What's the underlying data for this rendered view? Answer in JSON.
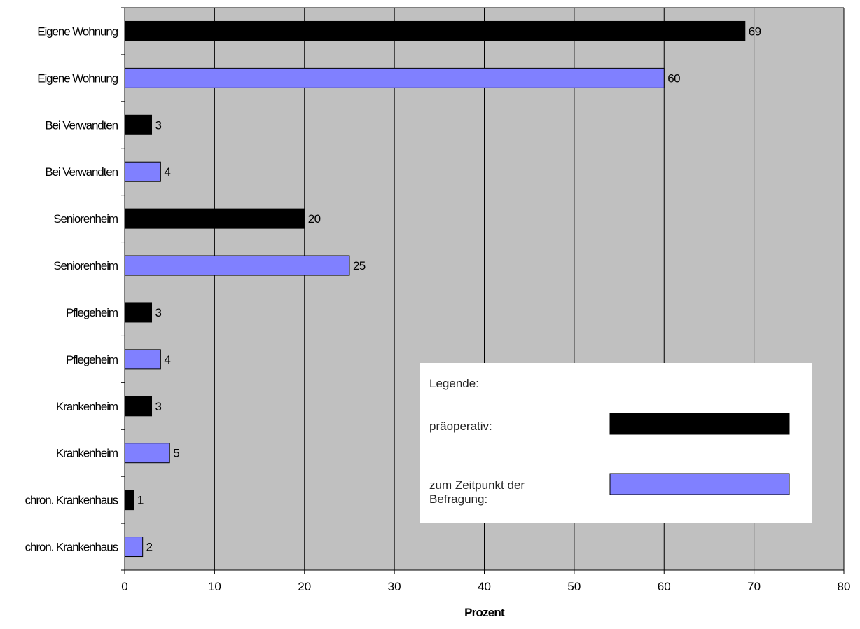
{
  "chart_data": {
    "type": "bar",
    "orientation": "horizontal",
    "categories": [
      "Eigene Wohnung",
      "Eigene Wohnung",
      "Bei Verwandten",
      "Bei Verwandten",
      "Seniorenheim",
      "Seniorenheim",
      "Pflegeheim",
      "Pflegeheim",
      "Krankenheim",
      "Krankenheim",
      "chron. Krankenhaus",
      "chron. Krankenhaus"
    ],
    "values": [
      69,
      60,
      3,
      4,
      20,
      25,
      3,
      4,
      3,
      5,
      1,
      2
    ],
    "series_index": [
      0,
      1,
      0,
      1,
      0,
      1,
      0,
      1,
      0,
      1,
      0,
      1
    ],
    "series": [
      {
        "name": "präoperativ:",
        "color": "#000000"
      },
      {
        "name": "zum Zeitpunkt der Befragung:",
        "color": "#8080ff"
      }
    ],
    "data_labels": [
      "69",
      "60",
      "3",
      "4",
      "20",
      "25",
      "3",
      "4",
      "3",
      "5",
      "1",
      "2"
    ],
    "xlabel": "Prozent",
    "ylabel": "",
    "xlim": [
      0,
      80
    ],
    "xticks": [
      0,
      10,
      20,
      30,
      40,
      50,
      60,
      70,
      80
    ],
    "xtick_labels": [
      "0",
      "10",
      "20",
      "30",
      "40",
      "50",
      "60",
      "70",
      "80"
    ],
    "grid": "vertical",
    "legend": {
      "title": "Legende:",
      "placement": "bottom-right",
      "entries": [
        "präoperativ:",
        "zum Zeitpunkt der Befragung:"
      ]
    },
    "colors": {
      "plot_background": "#c0c0c0",
      "gridline": "#000000"
    }
  }
}
